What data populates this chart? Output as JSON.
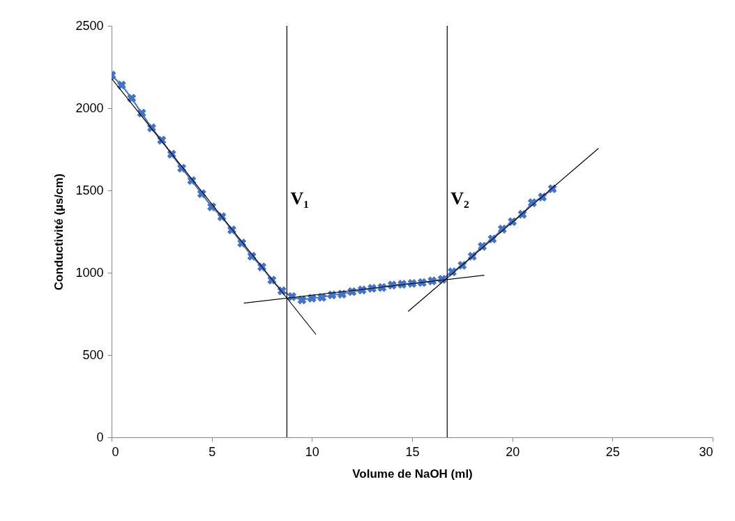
{
  "chart_data": {
    "type": "line",
    "xlabel": "Volume de NaOH (ml)",
    "ylabel": "Conductivité (µs/cm)",
    "xlim": [
      0,
      30
    ],
    "xticks": [
      0,
      5,
      10,
      15,
      20,
      25,
      30
    ],
    "ylim": [
      0,
      2500
    ],
    "yticks": [
      0,
      500,
      1000,
      1500,
      2000,
      2500
    ],
    "grid": false,
    "series": [
      {
        "color": "#4472c4",
        "marker": "cross",
        "x": [
          0,
          0.5,
          1,
          1.5,
          2,
          2.5,
          3,
          3.5,
          4,
          4.5,
          5,
          5.5,
          6,
          6.5,
          7,
          7.5,
          8,
          8.5,
          9,
          9.5,
          10,
          10.5,
          11,
          11.5,
          12,
          12.5,
          13,
          13.5,
          14,
          14.5,
          15,
          15.5,
          16,
          16.5,
          17,
          17.5,
          18,
          18.5,
          19,
          19.5,
          20,
          20.5,
          21,
          21.5,
          22
        ],
        "values": [
          2200,
          2140,
          2060,
          1970,
          1880,
          1805,
          1720,
          1635,
          1560,
          1480,
          1400,
          1340,
          1260,
          1180,
          1100,
          1035,
          955,
          890,
          855,
          835,
          845,
          850,
          865,
          870,
          885,
          895,
          905,
          910,
          925,
          930,
          935,
          940,
          950,
          960,
          1005,
          1045,
          1100,
          1160,
          1205,
          1265,
          1310,
          1355,
          1425,
          1460,
          1510
        ]
      },
      {
        "color": "#000000",
        "marker": "none",
        "x": [
          0,
          10.2
        ],
        "values": [
          2180,
          625
        ]
      },
      {
        "color": "#000000",
        "marker": "none",
        "x": [
          6.6,
          18.6
        ],
        "values": [
          815,
          985
        ]
      },
      {
        "color": "#000000",
        "marker": "none",
        "x": [
          14.8,
          24.3
        ],
        "values": [
          765,
          1755
        ]
      }
    ],
    "ref_lines": [
      {
        "axis": "x",
        "value": 8.75,
        "label": "V₁",
        "color": "#000000"
      },
      {
        "axis": "x",
        "value": 16.75,
        "label": "V₂",
        "color": "#000000"
      }
    ]
  }
}
